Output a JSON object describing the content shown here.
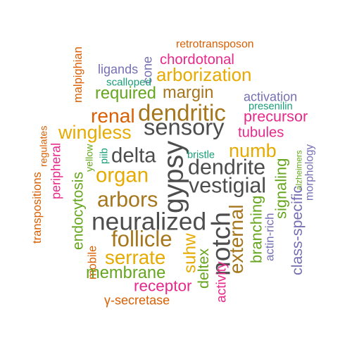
{
  "palette": {
    "dark_gray": "#4d4d4d",
    "brown": "#a6761d",
    "gold": "#e6ab02",
    "green": "#66a61e",
    "magenta": "#e7298a",
    "purple": "#7570b3",
    "orange": "#d95f02",
    "teal": "#1b9e77"
  },
  "words": [
    {
      "text": "retrotransposon",
      "color": "#d95f02",
      "vertical": false
    },
    {
      "text": "malpighian",
      "color": "#d95f02",
      "vertical": true
    },
    {
      "text": "cone",
      "color": "#7570b3",
      "vertical": true
    },
    {
      "text": "chordotonal",
      "color": "#e7298a",
      "vertical": false
    },
    {
      "text": "ligands",
      "color": "#7570b3",
      "vertical": false
    },
    {
      "text": "arborization",
      "color": "#e6ab02",
      "vertical": false
    },
    {
      "text": "scalloped",
      "color": "#1b9e77",
      "vertical": false
    },
    {
      "text": "required",
      "color": "#66a61e",
      "vertical": false
    },
    {
      "text": "margin",
      "color": "#a6761d",
      "vertical": false
    },
    {
      "text": "activation",
      "color": "#7570b3",
      "vertical": false
    },
    {
      "text": "presenilin",
      "color": "#1b9e77",
      "vertical": false
    },
    {
      "text": "dendritic",
      "color": "#a6761d",
      "vertical": false
    },
    {
      "text": "precursor",
      "color": "#e7298a",
      "vertical": false
    },
    {
      "text": "renal",
      "color": "#d95f02",
      "vertical": false
    },
    {
      "text": "sensory",
      "color": "#4d4d4d",
      "vertical": false
    },
    {
      "text": "wingless",
      "color": "#e6ab02",
      "vertical": false
    },
    {
      "text": "tubules",
      "color": "#e7298a",
      "vertical": false
    },
    {
      "text": "regulates",
      "color": "#d95f02",
      "vertical": true
    },
    {
      "text": "peripheral",
      "color": "#e7298a",
      "vertical": true
    },
    {
      "text": "yellow",
      "color": "#66a61e",
      "vertical": true
    },
    {
      "text": "piib",
      "color": "#1b9e77",
      "vertical": true
    },
    {
      "text": "delta",
      "color": "#4d4d4d",
      "vertical": false
    },
    {
      "text": "gypsy",
      "color": "#4d4d4d",
      "vertical": true
    },
    {
      "text": "bristle",
      "color": "#1b9e77",
      "vertical": false
    },
    {
      "text": "numb",
      "color": "#e6ab02",
      "vertical": false
    },
    {
      "text": "alzheimers",
      "color": "#66a61e",
      "vertical": true
    },
    {
      "text": "morphology",
      "color": "#7570b3",
      "vertical": true
    },
    {
      "text": "transpositions",
      "color": "#d95f02",
      "vertical": true
    },
    {
      "text": "organ",
      "color": "#e6ab02",
      "vertical": false
    },
    {
      "text": "dendrite",
      "color": "#4d4d4d",
      "vertical": false
    },
    {
      "text": "vestigial",
      "color": "#4d4d4d",
      "vertical": false
    },
    {
      "text": "signaling",
      "color": "#66a61e",
      "vertical": true
    },
    {
      "text": "class-specific",
      "color": "#7570b3",
      "vertical": true
    },
    {
      "text": "endocytosis",
      "color": "#66a61e",
      "vertical": true
    },
    {
      "text": "arbors",
      "color": "#a6761d",
      "vertical": false
    },
    {
      "text": "branching",
      "color": "#66a61e",
      "vertical": true
    },
    {
      "text": "actin-rich",
      "color": "#7570b3",
      "vertical": true
    },
    {
      "text": "neuralized",
      "color": "#4d4d4d",
      "vertical": false
    },
    {
      "text": "notch",
      "color": "#4d4d4d",
      "vertical": true
    },
    {
      "text": "external",
      "color": "#a6761d",
      "vertical": true
    },
    {
      "text": "follicle",
      "color": "#a6761d",
      "vertical": false
    },
    {
      "text": "suhw",
      "color": "#e6ab02",
      "vertical": true
    },
    {
      "text": "mobile",
      "color": "#d95f02",
      "vertical": true
    },
    {
      "text": "serrate",
      "color": "#e6ab02",
      "vertical": false
    },
    {
      "text": "deltex",
      "color": "#66a61e",
      "vertical": true
    },
    {
      "text": "membrane",
      "color": "#66a61e",
      "vertical": false
    },
    {
      "text": "activity",
      "color": "#e7298a",
      "vertical": true
    },
    {
      "text": "receptor",
      "color": "#e7298a",
      "vertical": false
    },
    {
      "text": "γ-secretase",
      "color": "#d95f02",
      "vertical": false
    }
  ]
}
